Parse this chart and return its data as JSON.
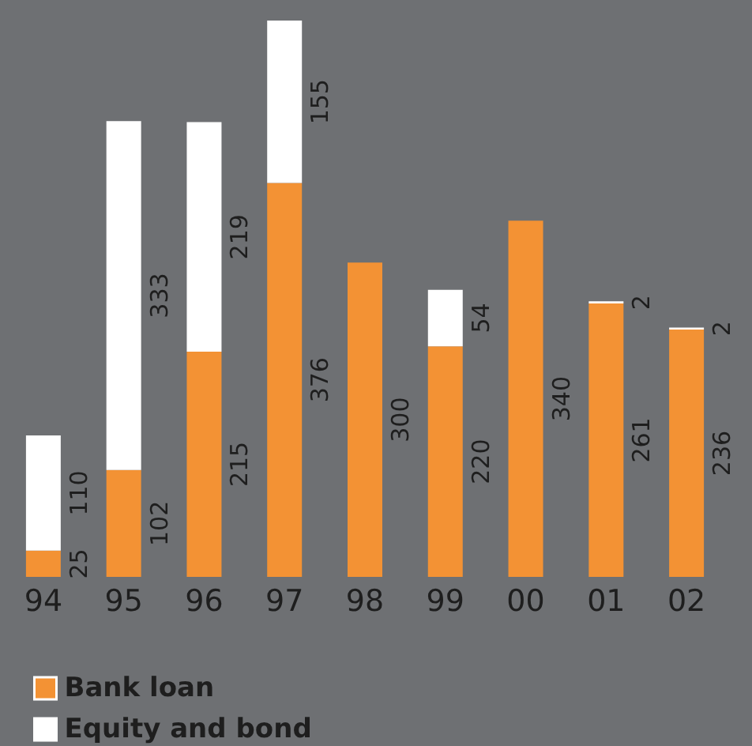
{
  "chart_data": {
    "type": "bar",
    "stacked": true,
    "data_labels": true,
    "legend": "bottom left",
    "categories": [
      "94",
      "95",
      "96",
      "97",
      "98",
      "99",
      "00",
      "01",
      "02"
    ],
    "series": [
      {
        "name": "Bank loan",
        "color": "#f39234",
        "values": [
          25,
          102,
          215,
          376,
          300,
          220,
          340,
          261,
          236
        ]
      },
      {
        "name": "Equity and bond",
        "color": "#ffffff",
        "values": [
          110,
          333,
          219,
          155,
          null,
          54,
          null,
          2,
          2
        ]
      }
    ]
  }
}
